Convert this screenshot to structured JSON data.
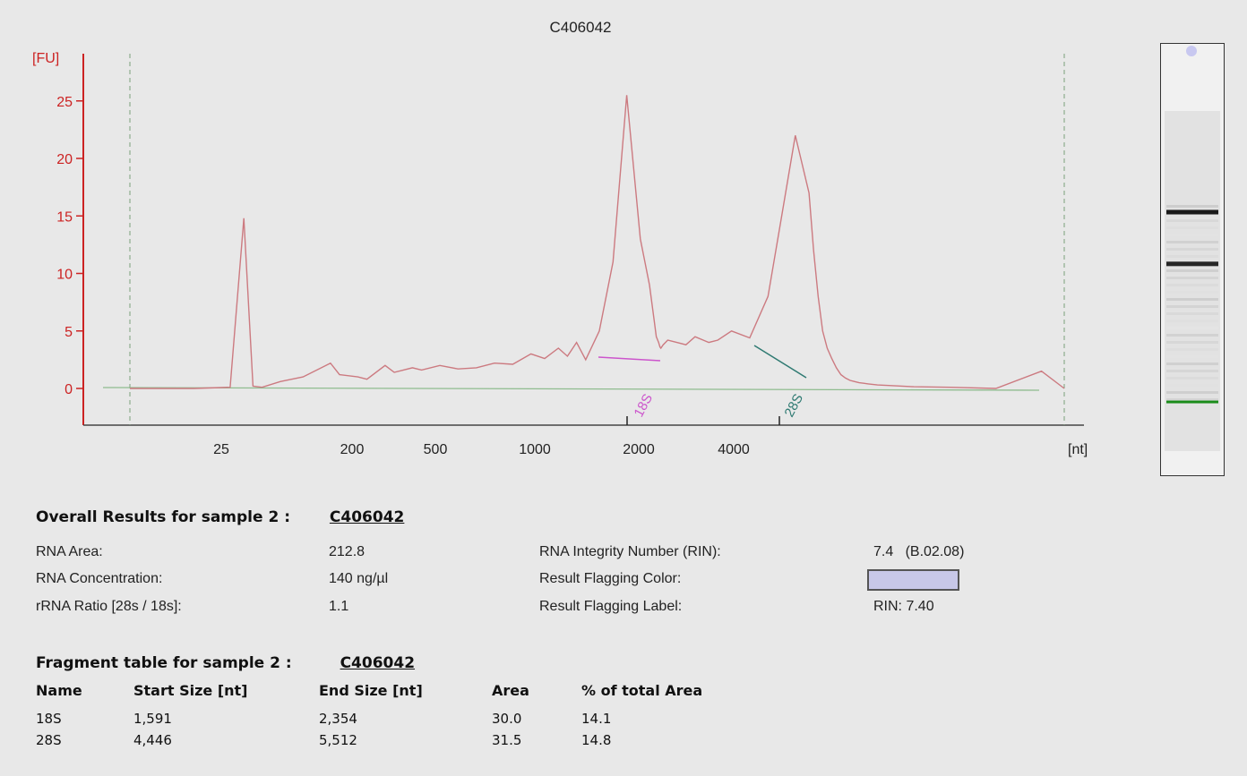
{
  "chart_data": {
    "type": "line",
    "title": "C406042",
    "ylabel": "[FU]",
    "xlabel": "[nt]",
    "ylim": [
      -3,
      28
    ],
    "yticks": [
      0,
      5,
      10,
      15,
      20,
      25
    ],
    "xticks": [
      "25",
      "200",
      "500",
      "1000",
      "2000",
      "4000"
    ],
    "grid": false,
    "series": [
      {
        "x": [
          0,
          14,
          22,
          25,
          27,
          29,
          33,
          38,
          44,
          46,
          50,
          52,
          56,
          58,
          62,
          64,
          68,
          72,
          76,
          80,
          84,
          88,
          91,
          94,
          96,
          98,
          100,
          103,
          106,
          109,
          112,
          114,
          115,
          115.5,
          116,
          116.3,
          116.5,
          117,
          118,
          120,
          122,
          124,
          127,
          129,
          132,
          136,
          140,
          143,
          146,
          149,
          150,
          151,
          152,
          153,
          154,
          155,
          156,
          157,
          158,
          159,
          160,
          161,
          162,
          164,
          167,
          172,
          180,
          190,
          200,
          205
        ],
        "values": [
          0,
          0,
          0.1,
          14.8,
          0.2,
          0.1,
          0.6,
          1.0,
          2.2,
          1.2,
          1.0,
          0.8,
          2.0,
          1.4,
          1.8,
          1.6,
          2.0,
          1.7,
          1.8,
          2.2,
          2.1,
          3.0,
          2.6,
          3.5,
          2.8,
          4.0,
          2.5,
          5.0,
          11.0,
          25.5,
          13.0,
          9.0,
          6.0,
          4.5,
          4.0,
          3.6,
          3.5,
          3.8,
          4.2,
          4.0,
          3.8,
          4.5,
          4.0,
          4.2,
          5.0,
          4.4,
          8.0,
          15.0,
          22.0,
          17.0,
          12.0,
          8.0,
          5.0,
          3.5,
          2.6,
          1.8,
          1.2,
          0.9,
          0.7,
          0.6,
          0.5,
          0.45,
          0.4,
          0.3,
          0.25,
          0.15,
          0.1,
          0.0,
          1.5,
          0
        ]
      }
    ],
    "fragments": [
      {
        "label": "18S",
        "color": "#cc55cc"
      },
      {
        "label": "28S",
        "color": "#2f7a72"
      }
    ],
    "colors": {
      "trace": "#cc7a80",
      "axis": "#cc2222",
      "baseline": "#8fbc8f",
      "dashed": "#7aa07a"
    }
  },
  "gel": {
    "bands": [
      {
        "level": 0.39,
        "intensity": 0.9
      },
      {
        "level": 0.51,
        "intensity": 0.85
      },
      {
        "level": 0.83,
        "color": "#1a8c1a"
      }
    ],
    "top_dot_color": "#c8c8f0"
  },
  "overall": {
    "title": "Overall Results for sample 2  :",
    "sample_id": "C406042",
    "left": [
      {
        "label": "RNA Area:",
        "value": "212.8"
      },
      {
        "label": "RNA Concentration:",
        "value": "140 ng/µl"
      },
      {
        "label": "rRNA Ratio [28s / 18s]:",
        "value": "1.1"
      }
    ],
    "right": [
      {
        "label": "RNA Integrity Number (RIN):",
        "value": "7.4   (B.02.08)"
      },
      {
        "label": "Result Flagging Color:",
        "value": ""
      },
      {
        "label": "Result Flagging Label:",
        "value": "RIN: 7.40"
      }
    ],
    "flag_color": "#c8c8e8"
  },
  "fragments_table": {
    "title": "Fragment table for sample 2  :",
    "sample_id": "C406042",
    "headers": [
      "Name",
      "Start Size [nt]",
      "End Size [nt]",
      "Area",
      "% of total Area"
    ],
    "rows": [
      [
        "18S",
        "1,591",
        "2,354",
        "30.0",
        "14.1"
      ],
      [
        "28S",
        "4,446",
        "5,512",
        "31.5",
        "14.8"
      ]
    ]
  }
}
